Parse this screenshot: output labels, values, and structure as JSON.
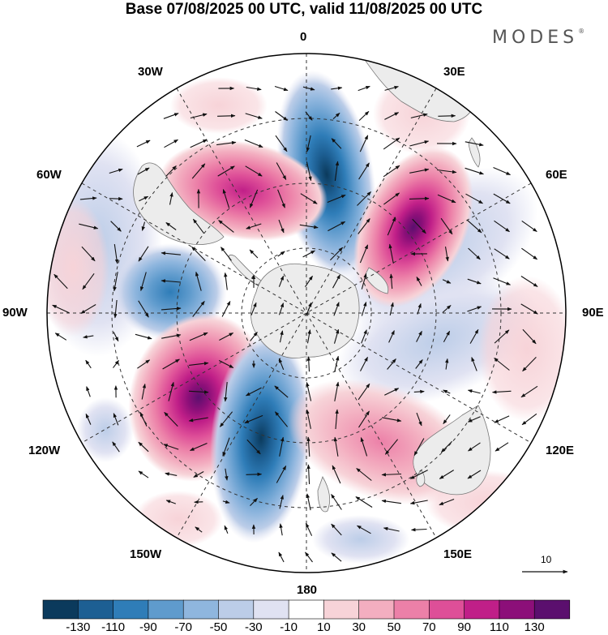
{
  "title": "Base 07/08/2025 00 UTC, valid 11/08/2025 00 UTC",
  "brand": "MODES",
  "brand_mark": "®",
  "map": {
    "projection": "south polar stereographic",
    "longitude_labels": {
      "lon_0": "0",
      "lon_30e": "30E",
      "lon_60e": "60E",
      "lon_90e": "90E",
      "lon_120e": "120E",
      "lon_150e": "150E",
      "lon_180": "180",
      "lon_150w": "150W",
      "lon_120w": "120W",
      "lon_90w": "90W",
      "lon_60w": "60W",
      "lon_30w": "30W"
    },
    "reference_vector_label": "10",
    "anomaly_centers": [
      {
        "sign": "negative",
        "value": -110,
        "region": "south of Africa, near 0"
      },
      {
        "sign": "positive",
        "value": 110,
        "region": "near 40E"
      },
      {
        "sign": "positive",
        "value": 70,
        "region": "near 30W"
      },
      {
        "sign": "negative",
        "value": -70,
        "region": "near 80W"
      },
      {
        "sign": "positive",
        "value": 130,
        "region": "near 125W"
      },
      {
        "sign": "negative",
        "value": -130,
        "region": "near 160W"
      },
      {
        "sign": "positive",
        "value": 50,
        "region": "near 150E"
      }
    ]
  },
  "colorbar": {
    "tick_labels": [
      "-130",
      "-110",
      "-90",
      "-70",
      "-50",
      "-30",
      "-10",
      "10",
      "30",
      "50",
      "70",
      "90",
      "110",
      "130"
    ],
    "colors": [
      "#0b3a5c",
      "#1d5f93",
      "#2f7db8",
      "#5f9bcd",
      "#8fb6de",
      "#bccde8",
      "#e0e2f2",
      "#ffffff",
      "#f7d3d8",
      "#f3aec0",
      "#ec80a8",
      "#de4f98",
      "#c01f88",
      "#8c0f79",
      "#5b0f6e"
    ]
  },
  "colors": {
    "land": "#ececec",
    "coast": "#777777"
  }
}
